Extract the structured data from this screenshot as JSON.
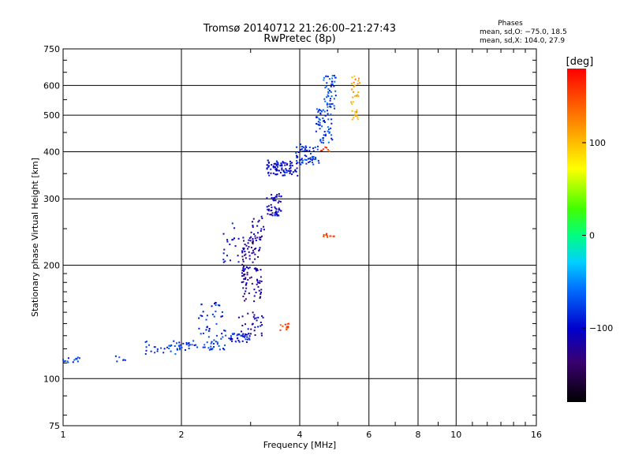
{
  "chart_data": {
    "type": "scatter",
    "title": "Tromsø 20140712 21:26:00–21:27:43",
    "subtitle": "RwPretec (8p)",
    "xlabel": "Frequency [MHz]",
    "ylabel": "Stationary phase Virtual Height [km]",
    "x_scale": "log",
    "y_scale": "log",
    "xlim": [
      1,
      16
    ],
    "ylim": [
      75,
      750
    ],
    "x_ticks": [
      1,
      2,
      4,
      6,
      8,
      10,
      16
    ],
    "x_tick_labels": [
      "1",
      "2",
      "4",
      "6",
      "8",
      "10",
      "16"
    ],
    "y_ticks": [
      75,
      100,
      200,
      300,
      400,
      500,
      600,
      750
    ],
    "y_tick_labels": [
      "75",
      "100",
      "200",
      "300",
      "400",
      "500",
      "600",
      "750"
    ],
    "grid": true,
    "annotation": {
      "title": "Phases",
      "lines": [
        "mean, sd,O: −75.0, 18.5",
        "mean, sd,X: 104.0, 27.9"
      ]
    },
    "colorbar": {
      "label": "[deg]",
      "range": [
        -180,
        180
      ],
      "ticks": [
        100,
        0,
        -100
      ],
      "tick_labels": [
        "100",
        "0",
        "−100"
      ]
    },
    "point_groups": [
      {
        "freq_range": [
          1.0,
          1.12
        ],
        "height_range": [
          110,
          114
        ],
        "phase": -80,
        "count": 14
      },
      {
        "freq_range": [
          1.3,
          1.45
        ],
        "height_range": [
          111,
          115
        ],
        "phase": -70,
        "count": 6
      },
      {
        "freq_range": [
          1.6,
          1.95
        ],
        "height_range": [
          116,
          126
        ],
        "phase": -75,
        "count": 26
      },
      {
        "freq_range": [
          1.95,
          2.6
        ],
        "height_range": [
          119,
          126
        ],
        "phase": -78,
        "count": 45
      },
      {
        "freq_range": [
          2.2,
          2.6
        ],
        "height_range": [
          126,
          160
        ],
        "phase": -88,
        "count": 40
      },
      {
        "freq_range": [
          2.6,
          3.0
        ],
        "height_range": [
          125,
          132
        ],
        "phase": -92,
        "count": 40
      },
      {
        "freq_range": [
          2.8,
          3.25
        ],
        "height_range": [
          130,
          150
        ],
        "phase": -115,
        "count": 30
      },
      {
        "freq_range": [
          2.85,
          3.2
        ],
        "height_range": [
          160,
          240
        ],
        "phase": -120,
        "count": 120
      },
      {
        "freq_range": [
          2.55,
          2.8
        ],
        "height_range": [
          200,
          260
        ],
        "phase": -95,
        "count": 20
      },
      {
        "freq_range": [
          3.0,
          3.25
        ],
        "height_range": [
          230,
          270
        ],
        "phase": -110,
        "count": 20
      },
      {
        "freq_range": [
          3.3,
          3.6
        ],
        "height_range": [
          270,
          310
        ],
        "phase": -105,
        "count": 55
      },
      {
        "freq_range": [
          3.3,
          3.95
        ],
        "height_range": [
          345,
          380
        ],
        "phase": -100,
        "count": 90
      },
      {
        "freq_range": [
          3.9,
          4.5
        ],
        "height_range": [
          370,
          420
        ],
        "phase": -85,
        "count": 60
      },
      {
        "freq_range": [
          4.4,
          4.85
        ],
        "height_range": [
          420,
          520
        ],
        "phase": -75,
        "count": 60
      },
      {
        "freq_range": [
          4.6,
          4.95
        ],
        "height_range": [
          520,
          640
        ],
        "phase": -75,
        "count": 50
      },
      {
        "freq_range": [
          5.4,
          5.7
        ],
        "height_range": [
          480,
          640
        ],
        "phase": 110,
        "count": 35
      },
      {
        "freq_range": [
          4.6,
          4.9
        ],
        "height_range": [
          237,
          243
        ],
        "phase": 155,
        "count": 10
      },
      {
        "freq_range": [
          3.55,
          3.75
        ],
        "height_range": [
          134,
          140
        ],
        "phase": 150,
        "count": 12
      },
      {
        "freq_range": [
          4.5,
          4.8
        ],
        "height_range": [
          400,
          412
        ],
        "phase": 150,
        "count": 8
      }
    ]
  }
}
